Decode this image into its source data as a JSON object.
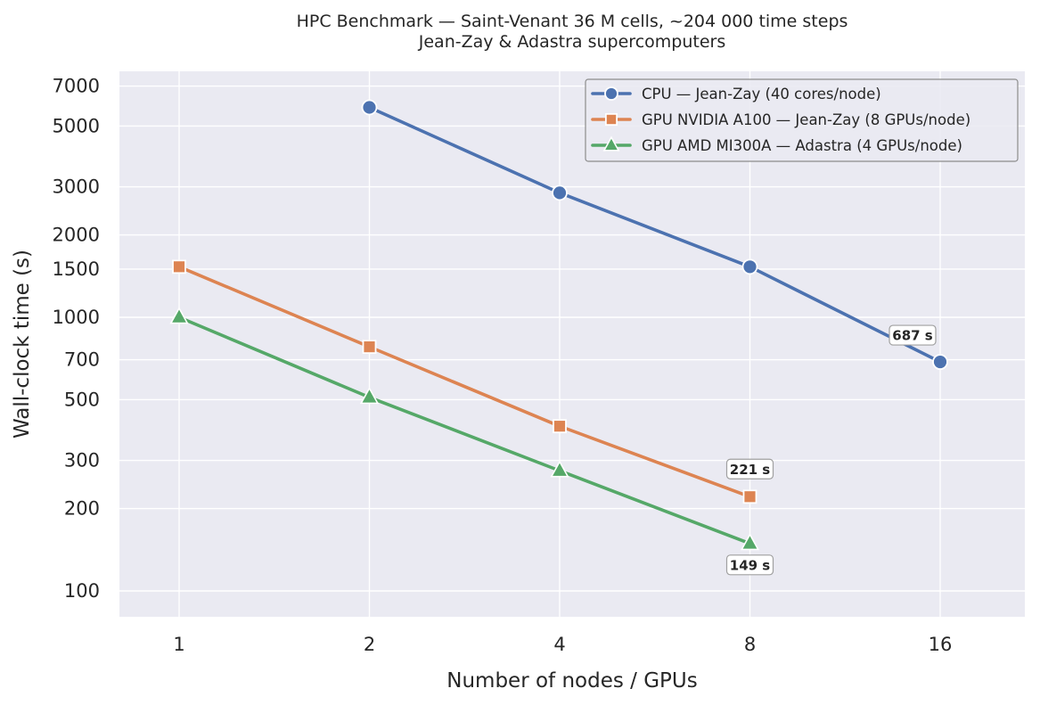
{
  "chart_data": {
    "type": "line",
    "title": "HPC Benchmark — Saint-Venant 36 M cells, ~204 000 time steps",
    "subtitle": "Jean-Zay & Adastra supercomputers",
    "xlabel": "Number of nodes / GPUs",
    "ylabel": "Wall-clock time (s)",
    "xscale": "log2",
    "yscale": "log10",
    "xticks": [
      1,
      2,
      4,
      8,
      16
    ],
    "yticks": [
      100,
      200,
      300,
      500,
      700,
      1000,
      1500,
      2000,
      3000,
      5000,
      7000
    ],
    "xlim": [
      0.8,
      22
    ],
    "ylim": [
      80,
      8000
    ],
    "grid": true,
    "legend_position": "top-right",
    "series": [
      {
        "name": "CPU — Jean-Zay (40 cores/node)",
        "color": "#4c72b0",
        "marker": "circle",
        "x": [
          2,
          4,
          8,
          16
        ],
        "y": [
          5850,
          2850,
          1530,
          687
        ]
      },
      {
        "name": "GPU NVIDIA A100 — Jean-Zay (8 GPUs/node)",
        "color": "#dd8452",
        "marker": "square",
        "x": [
          1,
          2,
          4,
          8
        ],
        "y": [
          1530,
          780,
          400,
          221
        ]
      },
      {
        "name": "GPU AMD MI300A — Adastra (4 GPUs/node)",
        "color": "#55a868",
        "marker": "triangle",
        "x": [
          1,
          2,
          4,
          8
        ],
        "y": [
          1000,
          510,
          275,
          149
        ]
      }
    ],
    "annotations": [
      {
        "text": "687 s",
        "x": 16,
        "y": 687,
        "placement": "above-left"
      },
      {
        "text": "221 s",
        "x": 8,
        "y": 221,
        "placement": "above"
      },
      {
        "text": "149 s",
        "x": 8,
        "y": 149,
        "placement": "below"
      }
    ]
  }
}
